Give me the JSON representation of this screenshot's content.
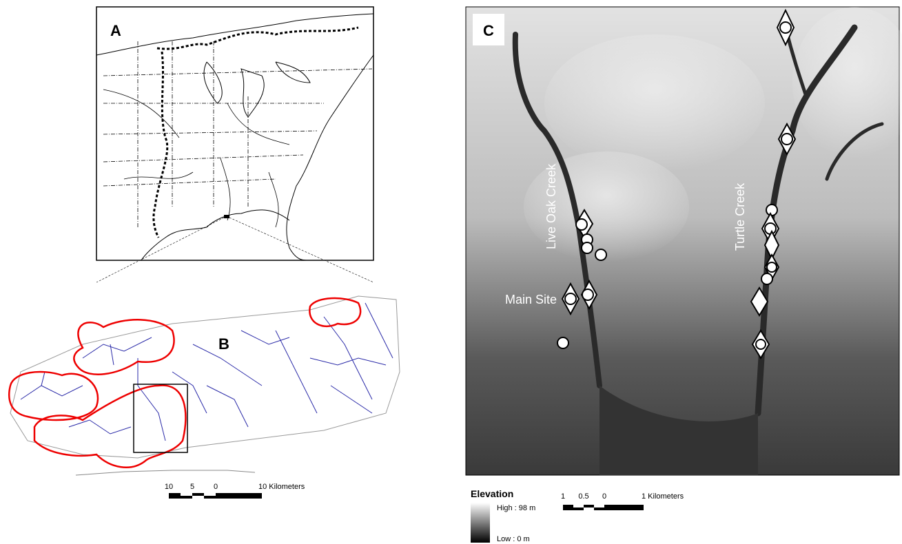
{
  "panels": {
    "a": {
      "label": "A"
    },
    "b": {
      "label": "B",
      "scale": {
        "ticks": [
          "10",
          "5",
          "0"
        ],
        "unit": "10 Kilometers"
      }
    },
    "c": {
      "label": "C",
      "annotations": [
        "Live Oak Creek",
        "Turtle Creek",
        "Main Site"
      ],
      "scale": {
        "ticks": [
          "1",
          "0.5",
          "0"
        ],
        "unit": "1 Kilometers"
      }
    }
  },
  "legend": {
    "title": "Elevation",
    "high": "High : 98 m",
    "low": "Low : 0 m"
  }
}
